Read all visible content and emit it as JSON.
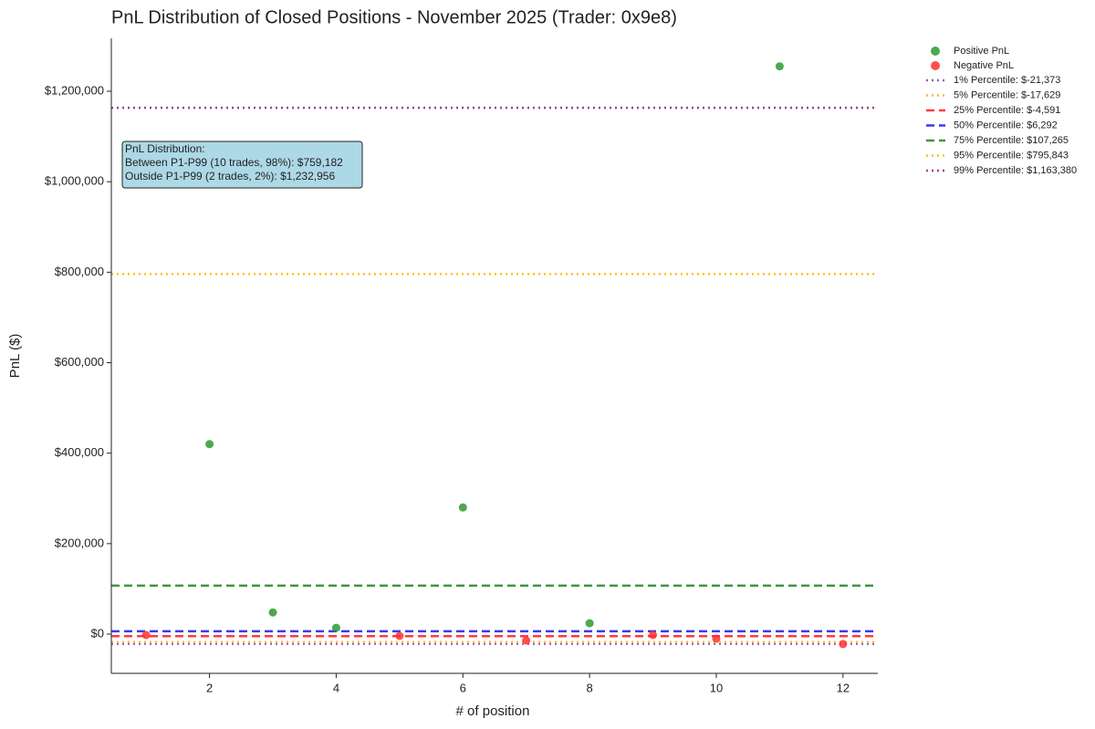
{
  "chart_data": {
    "type": "scatter",
    "title": "PnL Distribution of Closed Positions - November 2025 (Trader: 0x9e8)",
    "x_label": "# of position",
    "y_label": "PnL ($)",
    "xlim": [
      0.45,
      12.55
    ],
    "ylim": [
      -86700,
      1317000
    ],
    "xticks": [
      2,
      4,
      6,
      8,
      10,
      12
    ],
    "yticks": [
      {
        "value": 0,
        "label": "$0"
      },
      {
        "value": 200000,
        "label": "$200,000"
      },
      {
        "value": 400000,
        "label": "$400,000"
      },
      {
        "value": 600000,
        "label": "$600,000"
      },
      {
        "value": 800000,
        "label": "$800,000"
      },
      {
        "value": 1000000,
        "label": "$1,000,000"
      },
      {
        "value": 1200000,
        "label": "$1,200,000"
      }
    ],
    "grid": false,
    "legend": "outside-upper-right",
    "series": [
      {
        "name": "Positive PnL",
        "color": "#2e9a2e",
        "x": [
          2,
          3,
          4,
          6,
          8,
          11
        ],
        "values": [
          420000,
          48000,
          14000,
          280000,
          24000,
          1255000
        ]
      },
      {
        "name": "Negative PnL",
        "color": "#ff3030",
        "x": [
          1,
          5,
          7,
          9,
          10,
          12
        ],
        "values": [
          -2000,
          -4000,
          -14000,
          -2000,
          -10000,
          -22000
        ]
      }
    ],
    "lines": [
      {
        "name": "1% Percentile: $-21,373",
        "value": -21373,
        "color": "#9b59c6",
        "style": "dotted"
      },
      {
        "name": "5% Percentile: $-17,629",
        "value": -17629,
        "color": "#ffb62e",
        "style": "dotted"
      },
      {
        "name": "25% Percentile: $-4,591",
        "value": -4591,
        "color": "#ff3b3b",
        "style": "dashed"
      },
      {
        "name": "50% Percentile: $6,292",
        "value": 6292,
        "color": "#3a3af0",
        "style": "dashed"
      },
      {
        "name": "75% Percentile: $107,265",
        "value": 107265,
        "color": "#3a9a3a",
        "style": "dashed"
      },
      {
        "name": "95% Percentile: $795,843",
        "value": 795843,
        "color": "#ffc020",
        "style": "dotted"
      },
      {
        "name": "99% Percentile: $1,163,380",
        "value": 1163380,
        "color": "#a0408f",
        "style": "dotted"
      }
    ],
    "annotation": [
      "PnL Distribution:",
      "Between P1-P99 (10 trades, 98%): $759,182",
      "Outside P1-P99 (2 trades, 2%): $1,232,956"
    ]
  }
}
